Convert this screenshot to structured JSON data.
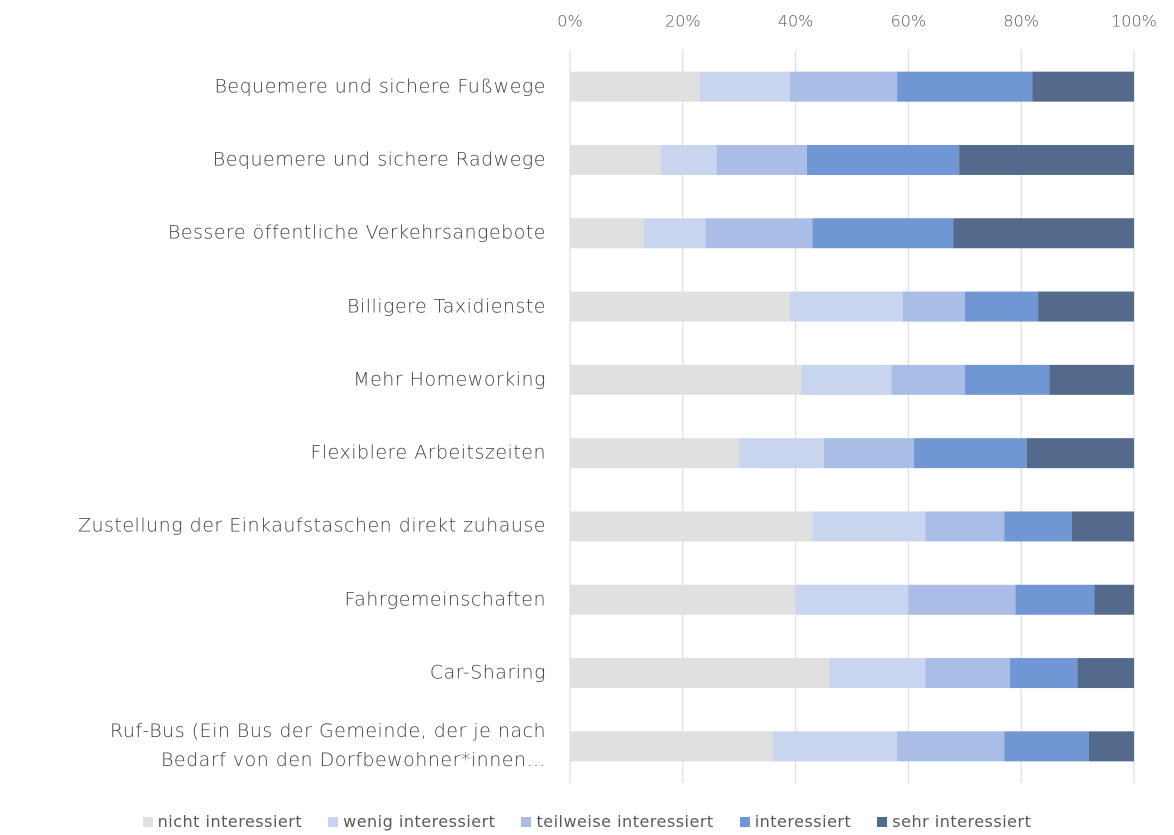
{
  "chart_data": {
    "type": "stacked_barh",
    "categories": [
      "Bequemere und sichere Fußwege",
      "Bequemere und sichere Radwege",
      "Bessere öffentliche Verkehrsangebote",
      "Billigere Taxidienste",
      "Mehr Homeworking",
      "Flexiblere Arbeitszeiten",
      "Zustellung der Einkaufstaschen direkt zuhause",
      "Fahrgemeinschaften",
      "Car-Sharing",
      "Ruf-Bus (Ein Bus der Gemeinde, der je nach\nBedarf von den Dorfbewohner*innen…"
    ],
    "series": [
      {
        "name": "nicht interessiert",
        "color": "#e0e0e0",
        "values": [
          23,
          16,
          13,
          39,
          41,
          30,
          43,
          40,
          46,
          36
        ]
      },
      {
        "name": "wenig interessiert",
        "color": "#c9d5ee",
        "values": [
          16,
          10,
          11,
          20,
          16,
          15,
          20,
          20,
          17,
          22
        ]
      },
      {
        "name": "teilweise interessiert",
        "color": "#a9bde6",
        "values": [
          19,
          16,
          19,
          11,
          13,
          16,
          14,
          19,
          15,
          19
        ]
      },
      {
        "name": "interessiert",
        "color": "#7096d4",
        "values": [
          24,
          27,
          25,
          13,
          15,
          20,
          12,
          14,
          12,
          15
        ]
      },
      {
        "name": "sehr interessiert",
        "color": "#546a8c",
        "values": [
          18,
          31,
          32,
          17,
          15,
          19,
          11,
          7,
          10,
          8
        ]
      }
    ],
    "xlim": [
      0,
      100
    ],
    "xticks": [
      {
        "value": 0,
        "label": "0%"
      },
      {
        "value": 20,
        "label": "20%"
      },
      {
        "value": 40,
        "label": "40%"
      },
      {
        "value": 60,
        "label": "60%"
      },
      {
        "value": 80,
        "label": "80%"
      },
      {
        "value": 100,
        "label": "100%"
      }
    ],
    "grid": true,
    "legend": "bottom"
  }
}
